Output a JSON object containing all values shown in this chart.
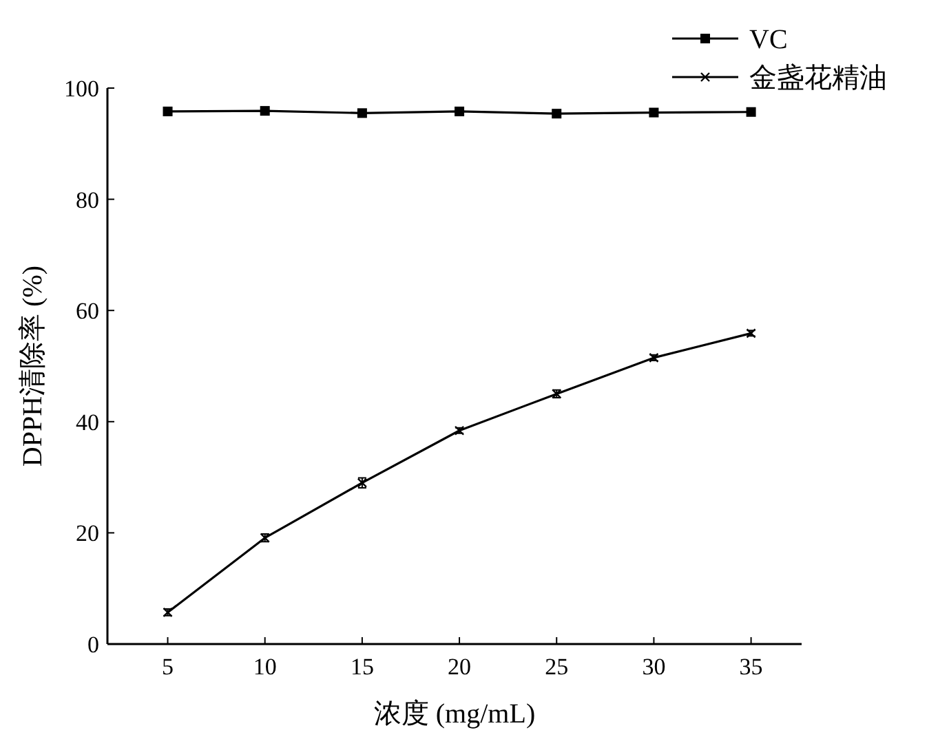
{
  "chart_data": {
    "type": "line",
    "xlabel": "浓度 (mg/mL)",
    "ylabel": "DPPH清除率 (%)",
    "x": [
      5,
      10,
      15,
      20,
      25,
      30,
      35
    ],
    "series": [
      {
        "name": "VC",
        "color": "#000000",
        "marker": "square",
        "values": [
          95.8,
          95.9,
          95.5,
          95.8,
          95.4,
          95.6,
          95.7
        ]
      },
      {
        "name": "金盏花精油",
        "color": "#000000",
        "marker": "cross",
        "values": [
          5.7,
          19.1,
          29.0,
          38.4,
          45.0,
          51.5,
          55.9
        ],
        "errors": [
          0.6,
          0.7,
          0.9,
          0.5,
          0.7,
          0.5,
          0.5
        ]
      }
    ],
    "xlim": [
      1.9,
      37.6
    ],
    "xticks": [
      5,
      10,
      15,
      20,
      25,
      30,
      35
    ],
    "ylim": [
      0,
      100
    ],
    "yticks": [
      0,
      20,
      40,
      60,
      80,
      100
    ],
    "grid": false,
    "legend": "top right",
    "line_style": "solid"
  }
}
